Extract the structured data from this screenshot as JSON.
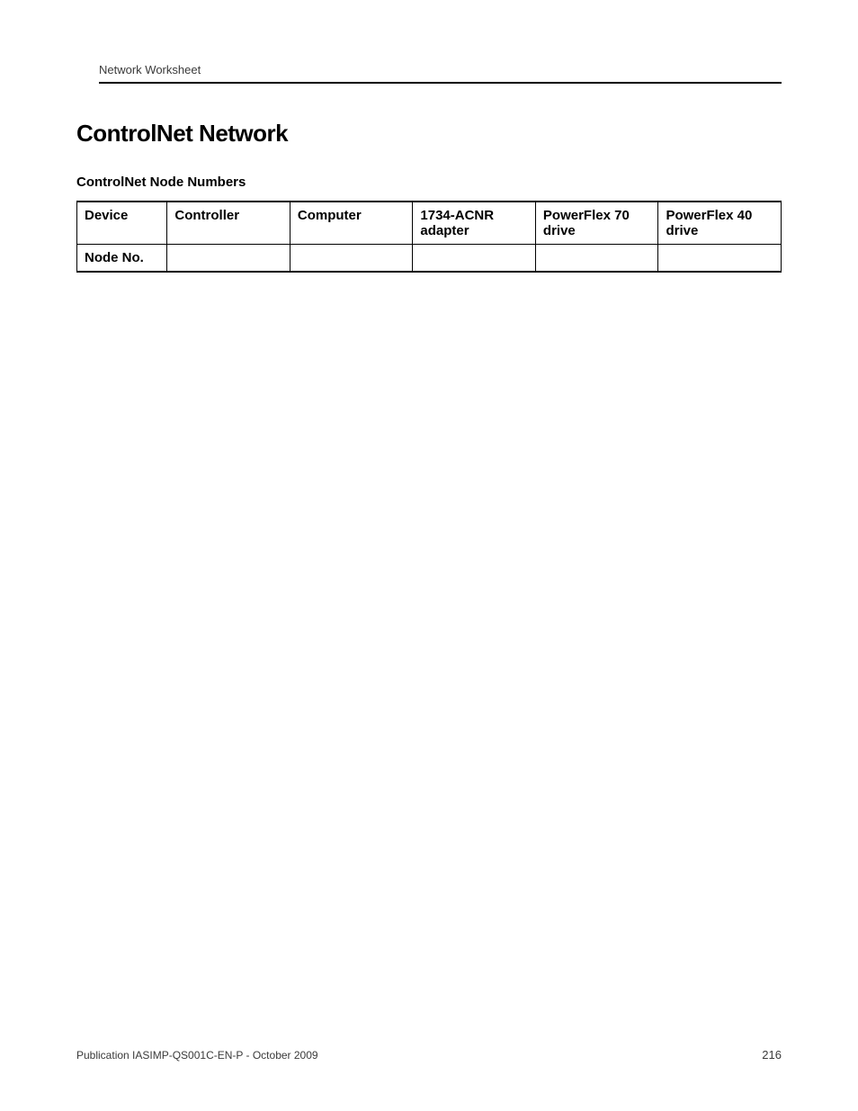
{
  "header": {
    "worksheet_label": "Network Worksheet"
  },
  "section": {
    "title": "ControlNet Network",
    "table_title": "ControlNet Node Numbers"
  },
  "table": {
    "columns": {
      "device": "Device",
      "controller": "Controller",
      "computer": "Computer",
      "adapter": "1734-ACNR adapter",
      "pf70": "PowerFlex 70 drive",
      "pf40": "PowerFlex 40 drive"
    },
    "row_label": "Node No.",
    "values": {
      "controller": "",
      "computer": "",
      "adapter": "",
      "pf70": "",
      "pf40": ""
    },
    "styling": {
      "border_color": "#000000",
      "top_bottom_border_width": 2,
      "inner_border_width": 1,
      "header_fontsize": 15,
      "header_fontweight": 700,
      "col_widths_pct": [
        12.5,
        17,
        17,
        17,
        17,
        17
      ],
      "background_color": "#ffffff"
    }
  },
  "footer": {
    "publication": "Publication IASIMP-QS001C-EN-P - October 2009",
    "page_number": "216"
  },
  "colors": {
    "text_black": "#000000",
    "text_gray": "#3a3a3a",
    "background": "#ffffff"
  },
  "typography": {
    "body_font": "Arial",
    "condensed_font": "Arial Narrow",
    "section_title_size": 26,
    "table_title_size": 15,
    "header_text_size": 13,
    "footer_text_size": 12
  }
}
